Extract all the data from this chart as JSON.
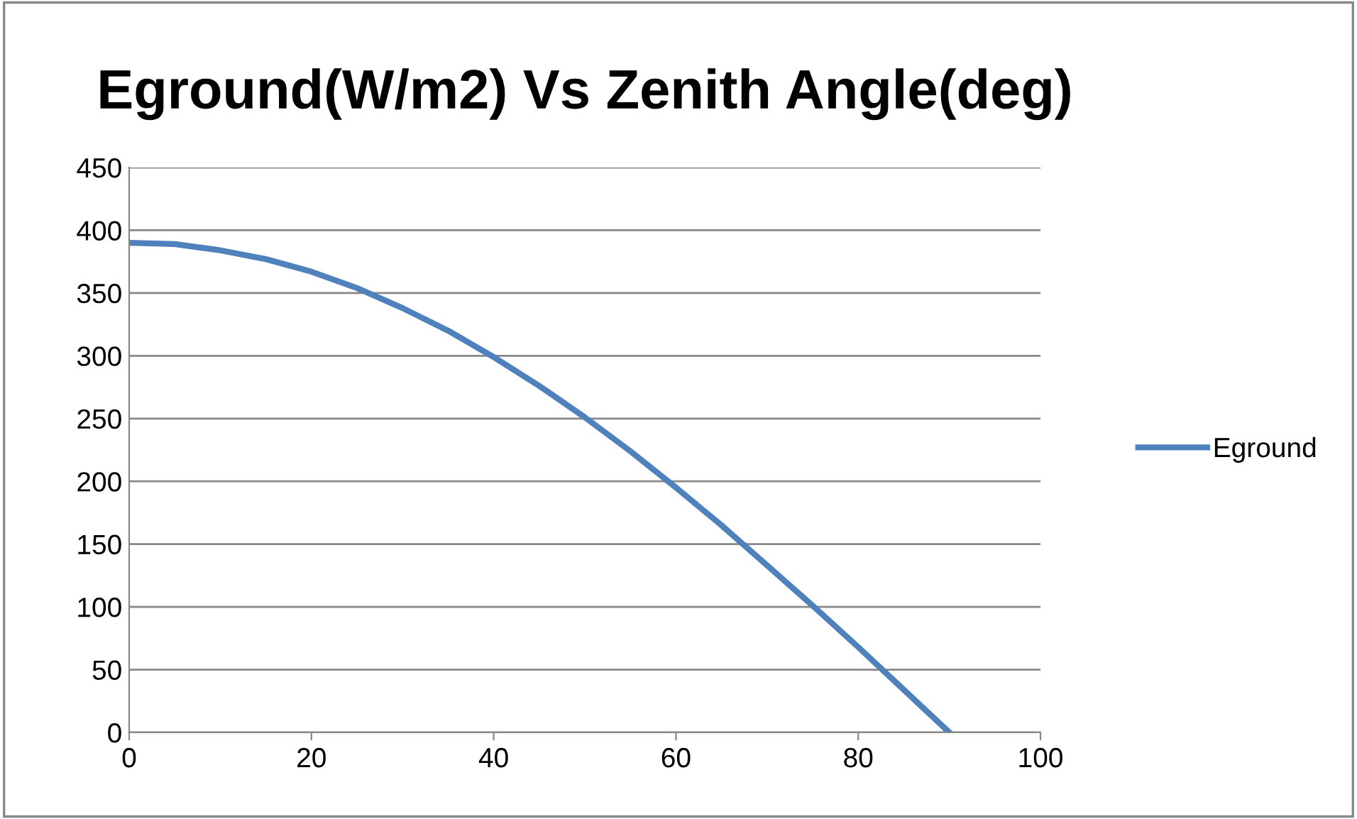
{
  "chart_data": {
    "type": "line",
    "title": "Eground(W/m2) Vs Zenith Angle(deg)",
    "x": [
      0,
      5,
      10,
      15,
      20,
      25,
      30,
      35,
      40,
      45,
      50,
      55,
      60,
      65,
      70,
      75,
      80,
      85,
      90
    ],
    "series": [
      {
        "name": "Eground",
        "color": "#4f81bd",
        "values": [
          390,
          389,
          384,
          377,
          367,
          354,
          338,
          320,
          299,
          276,
          251,
          224,
          195,
          165,
          133,
          101,
          68,
          34,
          0
        ]
      }
    ],
    "xlim": [
      0,
      100
    ],
    "xticks": [
      0,
      20,
      40,
      60,
      80,
      100
    ],
    "ylim": [
      0,
      450
    ],
    "yticks": [
      0,
      50,
      100,
      150,
      200,
      250,
      300,
      350,
      400,
      450
    ],
    "grid": "y",
    "legend": "right",
    "marker": "none",
    "line_style": "solid"
  }
}
